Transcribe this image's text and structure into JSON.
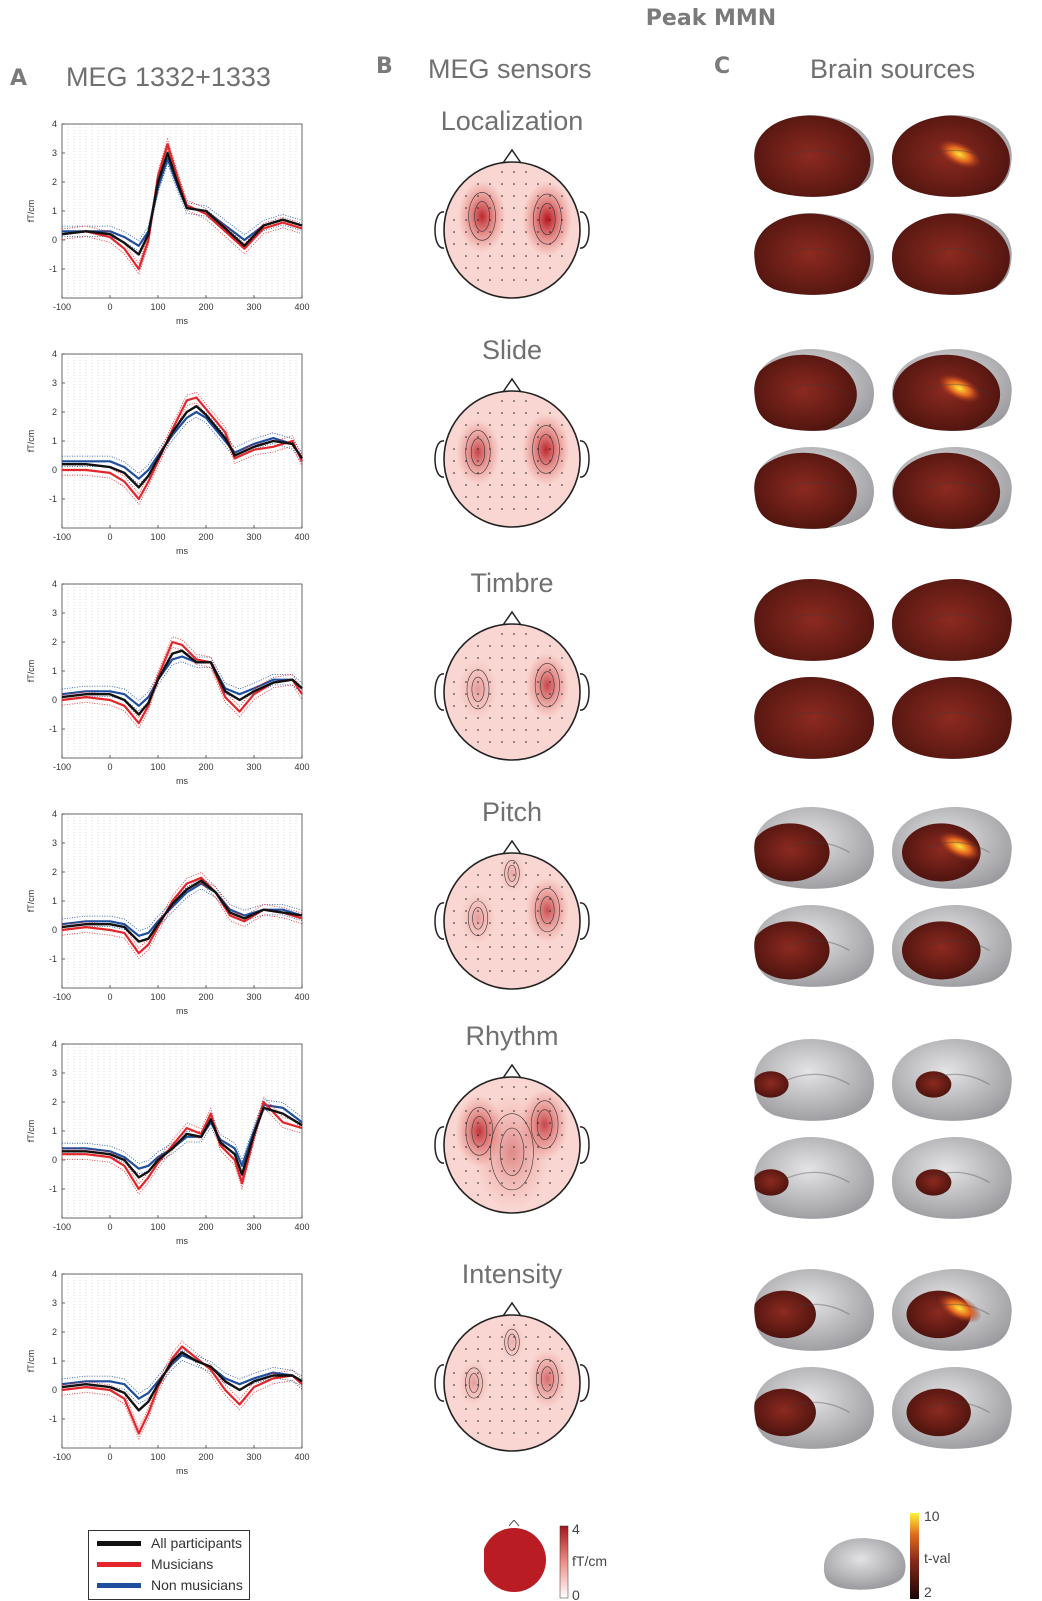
{
  "header": {
    "title": "Peak MMN"
  },
  "panels": {
    "A": {
      "letter": "A",
      "title": "MEG 1332+1333"
    },
    "B": {
      "letter": "B",
      "title": "MEG sensors"
    },
    "C": {
      "letter": "C",
      "title": "Brain sources"
    }
  },
  "conditions": [
    "Localization",
    "Slide",
    "Timbre",
    "Pitch",
    "Rhythm",
    "Intensity"
  ],
  "colors": {
    "all": "#111111",
    "musicians": "#e3262b",
    "non_musicians": "#1f4e9e",
    "topo": "#b91c22"
  },
  "legend": {
    "all": "All participants",
    "musicians": "Musicians",
    "non_musicians": "Non musicians"
  },
  "colorbars": {
    "sensors": {
      "max": "4",
      "unit": "fT/cm",
      "min": "0"
    },
    "sources": {
      "max": "10",
      "unit": "t-val",
      "min": "2"
    }
  },
  "chart_data": [
    {
      "type": "line",
      "title": "Localization",
      "xlabel": "ms",
      "ylabel": "fT/cm",
      "xlim": [
        -100,
        400
      ],
      "ylim": [
        -2,
        4
      ],
      "xticks": [
        -100,
        0,
        100,
        200,
        300,
        400
      ],
      "yticks": [
        -1,
        0,
        1,
        2,
        3,
        4
      ],
      "x": [
        -100,
        -50,
        0,
        30,
        60,
        80,
        100,
        120,
        140,
        160,
        200,
        240,
        280,
        320,
        360,
        400
      ],
      "series": [
        {
          "name": "All participants",
          "values": [
            0.2,
            0.3,
            0.2,
            -0.1,
            -0.5,
            0.2,
            2.0,
            3.0,
            2.0,
            1.1,
            1.0,
            0.4,
            -0.2,
            0.5,
            0.7,
            0.5
          ]
        },
        {
          "name": "Musicians",
          "values": [
            0.2,
            0.3,
            0.1,
            -0.3,
            -1.0,
            0.0,
            2.2,
            3.3,
            2.2,
            1.2,
            0.9,
            0.3,
            -0.3,
            0.4,
            0.6,
            0.4
          ]
        },
        {
          "name": "Non musicians",
          "values": [
            0.3,
            0.3,
            0.3,
            0.1,
            -0.2,
            0.3,
            1.8,
            2.8,
            1.9,
            1.1,
            1.0,
            0.5,
            0.0,
            0.5,
            0.7,
            0.5
          ]
        }
      ]
    },
    {
      "type": "line",
      "title": "Slide",
      "xlabel": "ms",
      "ylabel": "fT/cm",
      "xlim": [
        -100,
        400
      ],
      "ylim": [
        -2,
        4
      ],
      "xticks": [
        -100,
        0,
        100,
        200,
        300,
        400
      ],
      "yticks": [
        -1,
        0,
        1,
        2,
        3,
        4
      ],
      "x": [
        -100,
        -50,
        0,
        30,
        60,
        80,
        100,
        130,
        160,
        180,
        200,
        240,
        260,
        300,
        340,
        380,
        400
      ],
      "series": [
        {
          "name": "All participants",
          "values": [
            0.2,
            0.2,
            0.1,
            -0.1,
            -0.6,
            -0.2,
            0.4,
            1.3,
            2.0,
            2.2,
            1.9,
            1.1,
            0.5,
            0.8,
            1.0,
            0.9,
            0.4
          ]
        },
        {
          "name": "Musicians",
          "values": [
            0.0,
            0.0,
            -0.1,
            -0.4,
            -1.0,
            -0.4,
            0.3,
            1.4,
            2.4,
            2.5,
            2.1,
            1.3,
            0.4,
            0.7,
            0.8,
            1.0,
            0.3
          ]
        },
        {
          "name": "Non musicians",
          "values": [
            0.3,
            0.3,
            0.3,
            0.1,
            -0.3,
            0.0,
            0.5,
            1.2,
            1.8,
            2.0,
            1.8,
            1.0,
            0.6,
            0.9,
            1.1,
            0.9,
            0.4
          ]
        }
      ]
    },
    {
      "type": "line",
      "title": "Timbre",
      "xlabel": "ms",
      "ylabel": "fT/cm",
      "xlim": [
        -100,
        400
      ],
      "ylim": [
        -2,
        4
      ],
      "xticks": [
        -100,
        0,
        100,
        200,
        300,
        400
      ],
      "yticks": [
        -1,
        0,
        1,
        2,
        3,
        4
      ],
      "x": [
        -100,
        -50,
        0,
        30,
        60,
        80,
        100,
        130,
        150,
        180,
        210,
        240,
        270,
        300,
        340,
        380,
        400
      ],
      "series": [
        {
          "name": "All participants",
          "values": [
            0.1,
            0.2,
            0.2,
            0.0,
            -0.5,
            -0.1,
            0.7,
            1.6,
            1.7,
            1.3,
            1.3,
            0.3,
            0.0,
            0.3,
            0.6,
            0.7,
            0.4
          ]
        },
        {
          "name": "Musicians",
          "values": [
            0.0,
            0.1,
            0.0,
            -0.2,
            -0.8,
            -0.2,
            0.8,
            2.0,
            1.9,
            1.4,
            1.3,
            0.1,
            -0.4,
            0.2,
            0.6,
            0.7,
            0.2
          ]
        },
        {
          "name": "Non musicians",
          "values": [
            0.2,
            0.3,
            0.3,
            0.2,
            -0.2,
            0.1,
            0.7,
            1.4,
            1.5,
            1.3,
            1.3,
            0.4,
            0.2,
            0.4,
            0.7,
            0.7,
            0.4
          ]
        }
      ]
    },
    {
      "type": "line",
      "title": "Pitch",
      "xlabel": "ms",
      "ylabel": "fT/cm",
      "xlim": [
        -100,
        400
      ],
      "ylim": [
        -2,
        4
      ],
      "xticks": [
        -100,
        0,
        100,
        200,
        300,
        400
      ],
      "yticks": [
        -1,
        0,
        1,
        2,
        3,
        4
      ],
      "x": [
        -100,
        -50,
        0,
        30,
        60,
        80,
        100,
        130,
        160,
        190,
        220,
        250,
        280,
        320,
        360,
        400
      ],
      "series": [
        {
          "name": "All participants",
          "values": [
            0.1,
            0.2,
            0.2,
            0.1,
            -0.4,
            -0.3,
            0.2,
            0.9,
            1.4,
            1.7,
            1.3,
            0.6,
            0.4,
            0.7,
            0.6,
            0.5
          ]
        },
        {
          "name": "Musicians",
          "values": [
            0.0,
            0.1,
            0.0,
            -0.1,
            -0.8,
            -0.5,
            0.1,
            1.0,
            1.6,
            1.8,
            1.3,
            0.5,
            0.3,
            0.7,
            0.6,
            0.4
          ]
        },
        {
          "name": "Non musicians",
          "values": [
            0.2,
            0.3,
            0.3,
            0.2,
            -0.2,
            -0.1,
            0.3,
            0.8,
            1.3,
            1.6,
            1.3,
            0.7,
            0.5,
            0.7,
            0.7,
            0.5
          ]
        }
      ]
    },
    {
      "type": "line",
      "title": "Rhythm",
      "xlabel": "ms",
      "ylabel": "fT/cm",
      "xlim": [
        -100,
        400
      ],
      "ylim": [
        -2,
        4
      ],
      "xticks": [
        -100,
        0,
        100,
        200,
        300,
        400
      ],
      "yticks": [
        -1,
        0,
        1,
        2,
        3,
        4
      ],
      "x": [
        -100,
        -50,
        0,
        30,
        60,
        80,
        100,
        130,
        160,
        190,
        210,
        230,
        260,
        275,
        300,
        320,
        360,
        400
      ],
      "series": [
        {
          "name": "All participants",
          "values": [
            0.3,
            0.3,
            0.2,
            0.0,
            -0.6,
            -0.4,
            0.0,
            0.4,
            0.9,
            0.8,
            1.4,
            0.6,
            0.2,
            -0.5,
            0.9,
            1.8,
            1.6,
            1.2
          ]
        },
        {
          "name": "Musicians",
          "values": [
            0.2,
            0.2,
            0.1,
            -0.2,
            -1.0,
            -0.6,
            -0.1,
            0.5,
            1.1,
            0.9,
            1.6,
            0.5,
            0.0,
            -0.8,
            0.8,
            2.0,
            1.3,
            1.1
          ]
        },
        {
          "name": "Non musicians",
          "values": [
            0.4,
            0.4,
            0.3,
            0.1,
            -0.3,
            -0.2,
            0.1,
            0.4,
            0.8,
            0.8,
            1.3,
            0.7,
            0.4,
            -0.2,
            1.0,
            1.9,
            1.8,
            1.3
          ]
        }
      ]
    },
    {
      "type": "line",
      "title": "Intensity",
      "xlabel": "ms",
      "ylabel": "fT/cm",
      "xlim": [
        -100,
        400
      ],
      "ylim": [
        -2,
        4
      ],
      "xticks": [
        -100,
        0,
        100,
        200,
        300,
        400
      ],
      "yticks": [
        -1,
        0,
        1,
        2,
        3,
        4
      ],
      "x": [
        -100,
        -50,
        0,
        30,
        60,
        80,
        100,
        130,
        150,
        180,
        210,
        240,
        270,
        300,
        340,
        380,
        400
      ],
      "series": [
        {
          "name": "All participants",
          "values": [
            0.1,
            0.2,
            0.1,
            -0.1,
            -0.7,
            -0.4,
            0.2,
            1.0,
            1.3,
            1.0,
            0.8,
            0.3,
            0.0,
            0.3,
            0.5,
            0.5,
            0.3
          ]
        },
        {
          "name": "Musicians",
          "values": [
            0.0,
            0.1,
            0.0,
            -0.3,
            -1.5,
            -0.8,
            0.1,
            1.1,
            1.5,
            1.1,
            0.7,
            0.0,
            -0.5,
            0.1,
            0.4,
            0.5,
            0.2
          ]
        },
        {
          "name": "Non musicians",
          "values": [
            0.2,
            0.3,
            0.3,
            0.2,
            -0.3,
            -0.1,
            0.3,
            0.9,
            1.2,
            1.0,
            0.8,
            0.4,
            0.2,
            0.4,
            0.6,
            0.5,
            0.3
          ]
        }
      ]
    }
  ]
}
